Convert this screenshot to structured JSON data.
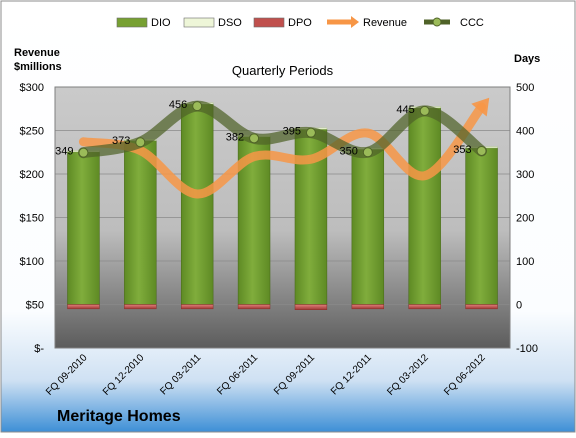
{
  "company": "Meritage Homes",
  "chart_data": {
    "type": "bar",
    "title": "Quarterly Periods",
    "categories": [
      "FQ 09-2010",
      "FQ 12-2010",
      "FQ 03-2011",
      "FQ 06-2011",
      "FQ 09-2011",
      "FQ 12-2011",
      "FQ 03-2012",
      "FQ 06-2012"
    ],
    "left_axis": {
      "label_line1": "Revenue",
      "label_line2": "$millions",
      "range": [
        0,
        300
      ],
      "ticks": [
        0,
        50,
        100,
        150,
        200,
        250,
        300
      ],
      "tick_labels": [
        "$-",
        "$50",
        "$100",
        "$150",
        "$200",
        "$250",
        "$300"
      ]
    },
    "right_axis": {
      "label": "Days",
      "range": [
        -100,
        500
      ],
      "ticks": [
        -100,
        0,
        100,
        200,
        300,
        400,
        500
      ],
      "tick_labels": [
        "-100",
        "0",
        "100",
        "200",
        "300",
        "400",
        "500"
      ]
    },
    "legend": {
      "position": "top",
      "entries": [
        {
          "name": "DIO",
          "color": "#77a032"
        },
        {
          "name": "DSO",
          "color": "#eef6d8"
        },
        {
          "name": "DPO",
          "color": "#c0504d"
        },
        {
          "name": "Revenue",
          "color": "#f79646"
        },
        {
          "name": "CCC",
          "color": "#4f6228"
        }
      ]
    },
    "series": [
      {
        "name": "DIO",
        "axis": "right",
        "kind": "bar",
        "values": [
          351,
          377,
          461,
          386,
          403,
          357,
          452,
          360
        ]
      },
      {
        "name": "DSO",
        "axis": "right",
        "kind": "bar",
        "values": [
          3,
          3,
          3,
          3,
          3,
          3,
          3,
          3
        ]
      },
      {
        "name": "DPO",
        "axis": "right",
        "kind": "bar",
        "values": [
          -10,
          -10,
          -10,
          -10,
          -12,
          -10,
          -10,
          -10
        ]
      },
      {
        "name": "Revenue",
        "axis": "left",
        "kind": "line",
        "values": [
          237,
          227,
          177,
          220,
          217,
          247,
          198,
          277
        ]
      },
      {
        "name": "CCC",
        "axis": "right",
        "kind": "line",
        "values": [
          349,
          373,
          456,
          382,
          395,
          350,
          445,
          353
        ]
      }
    ],
    "data_labels": [
      "349",
      "373",
      "456",
      "382",
      "395",
      "350",
      "445",
      "353"
    ],
    "grid": true
  }
}
